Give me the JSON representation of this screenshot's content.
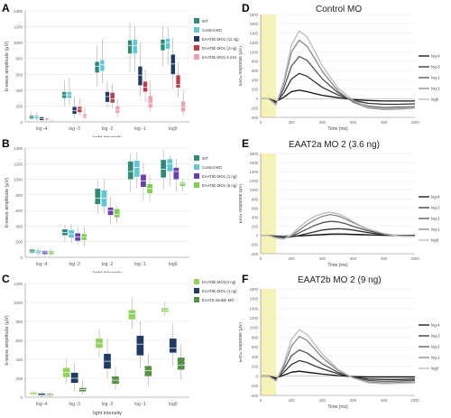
{
  "panel_labels": [
    "A",
    "B",
    "C",
    "D",
    "E",
    "F"
  ],
  "colors": {
    "wt": "#2e8b7a",
    "control": "#5fc8d8",
    "navy": "#1f3a63",
    "red": "#c03b45",
    "pink": "#f0a0a8",
    "purple": "#6a3fb0",
    "green": "#7fcf50",
    "darkgreen": "#2f6b2f",
    "hatch": "#5f9d4a",
    "lightgreen": "#8fd35a",
    "yellowband": "#f7f3b5",
    "trace": [
      "#111111",
      "#333333",
      "#555555",
      "#888888",
      "#bbbbbb"
    ]
  },
  "chart_data": [
    {
      "id": "A",
      "type": "box",
      "ylabel": "b-wave amplitude (µV)",
      "xlabel": "light intensity",
      "ylim": [
        0,
        1400
      ],
      "yticks": [
        0,
        200,
        400,
        600,
        800,
        1000,
        1200,
        1400
      ],
      "categories": [
        "log -4",
        "log -3",
        "log -2",
        "log -1",
        "log0"
      ],
      "series": [
        {
          "name": "WT",
          "color": "wt",
          "boxes": [
            [
              20,
              40,
              60,
              80,
              130
            ],
            [
              200,
              300,
              340,
              380,
              520
            ],
            [
              450,
              620,
              700,
              760,
              960
            ],
            [
              620,
              860,
              960,
              1030,
              1250
            ],
            [
              700,
              900,
              980,
              1040,
              1210
            ]
          ]
        },
        {
          "name": "Control MO",
          "color": "control",
          "boxes": [
            [
              20,
              40,
              60,
              80,
              120
            ],
            [
              220,
              300,
              340,
              380,
              560
            ],
            [
              480,
              640,
              720,
              780,
              1050
            ],
            [
              640,
              860,
              960,
              1040,
              1210
            ],
            [
              720,
              920,
              1000,
              1050,
              1200
            ]
          ]
        },
        {
          "name": "EAAT5b MO1 (11 ng)",
          "color": "navy",
          "boxes": [
            [
              10,
              20,
              40,
              60,
              80
            ],
            [
              50,
              100,
              140,
              190,
              320
            ],
            [
              180,
              250,
              320,
              380,
              520
            ],
            [
              320,
              460,
              590,
              700,
              1000
            ],
            [
              420,
              600,
              730,
              850,
              1060
            ]
          ]
        },
        {
          "name": "EAAT5b MO1 (4 ng)",
          "color": "red",
          "boxes": [
            [
              10,
              20,
              30,
              40,
              60
            ],
            [
              80,
              120,
              160,
              190,
              300
            ],
            [
              170,
              240,
              290,
              370,
              480
            ],
            [
              250,
              380,
              440,
              510,
              660
            ],
            [
              300,
              430,
              470,
              590,
              740
            ]
          ]
        },
        {
          "name": "EAAT5b MO1 5 mm",
          "color": "pink",
          "boxes": [
            [
              5,
              10,
              15,
              25,
              40
            ],
            [
              30,
              50,
              70,
              100,
              180
            ],
            [
              60,
              110,
              150,
              200,
              290
            ],
            [
              120,
              180,
              230,
              330,
              520
            ],
            [
              80,
              130,
              190,
              260,
              400
            ]
          ]
        }
      ],
      "legend": {
        "position": "right"
      }
    },
    {
      "id": "B",
      "type": "box",
      "ylabel": "b-wave amplitude (µV)",
      "xlabel": "light intensity",
      "ylim": [
        0,
        1400
      ],
      "yticks": [
        0,
        200,
        400,
        600,
        800,
        1000,
        1200,
        1400
      ],
      "categories": [
        "log -4",
        "log -3",
        "log -2",
        "log -1",
        "log0"
      ],
      "series": [
        {
          "name": "WT",
          "color": "wt",
          "boxes": [
            [
              40,
              60,
              80,
              100,
              130
            ],
            [
              200,
              280,
              320,
              360,
              420
            ],
            [
              560,
              680,
              760,
              880,
              990
            ],
            [
              840,
              1000,
              1100,
              1230,
              1330
            ],
            [
              870,
              1020,
              1130,
              1250,
              1380
            ]
          ]
        },
        {
          "name": "Control MO",
          "color": "control",
          "boxes": [
            [
              30,
              50,
              70,
              90,
              120
            ],
            [
              180,
              250,
              300,
              350,
              430
            ],
            [
              560,
              650,
              760,
              860,
              1000
            ],
            [
              880,
              1030,
              1150,
              1240,
              1350
            ],
            [
              920,
              1100,
              1200,
              1260,
              1310
            ]
          ]
        },
        {
          "name": "EAAT5b MO1 (1 ng)",
          "color": "purple",
          "boxes": [
            [
              20,
              40,
              60,
              80,
              100
            ],
            [
              160,
              210,
              260,
              310,
              390
            ],
            [
              420,
              540,
              600,
              640,
              780
            ],
            [
              720,
              900,
              980,
              1060,
              1200
            ],
            [
              840,
              1000,
              1100,
              1150,
              1260
            ]
          ]
        },
        {
          "name": "EAAT5b MO1 (6 ng)",
          "color": "green",
          "boxes": [
            [
              20,
              40,
              60,
              80,
              110
            ],
            [
              140,
              220,
              260,
              300,
              380
            ],
            [
              440,
              510,
              550,
              620,
              660
            ],
            [
              720,
              820,
              880,
              940,
              1050
            ],
            [
              850,
              910,
              940,
              960,
              1000
            ]
          ]
        }
      ],
      "legend": {
        "position": "right"
      }
    },
    {
      "id": "C",
      "type": "box",
      "ylabel": "b-wave amplitude (µV)",
      "xlabel": "light intensity",
      "ylim": [
        0,
        1200
      ],
      "yticks": [
        0,
        200,
        400,
        600,
        800,
        1000,
        1200
      ],
      "categories": [
        "log -4",
        "log -3",
        "log -2",
        "log -1",
        "log0"
      ],
      "series": [
        {
          "name": "EAAT5b MO2(4 ng)",
          "color": "lightgreen",
          "boxes": [
            [
              10,
              25,
              35,
              50,
              70
            ],
            [
              140,
              210,
              260,
              310,
              400
            ],
            [
              420,
              520,
              570,
              620,
              720
            ],
            [
              720,
              820,
              880,
              920,
              1050
            ],
            [
              860,
              900,
              920,
              940,
              1010
            ]
          ]
        },
        {
          "name": "EAAT5b MO1 (1 ng)",
          "color": "navy",
          "boxes": [
            [
              5,
              15,
              25,
              40,
              60
            ],
            [
              60,
              150,
              200,
              260,
              360
            ],
            [
              200,
              300,
              380,
              460,
              620
            ],
            [
              300,
              440,
              560,
              650,
              800
            ],
            [
              330,
              470,
              520,
              620,
              780
            ]
          ]
        },
        {
          "name": "EAAT5 double MO",
          "color": "hatch",
          "boxes": [
            [
              5,
              15,
              25,
              35,
              50
            ],
            [
              30,
              60,
              80,
              100,
              180
            ],
            [
              80,
              140,
              180,
              220,
              320
            ],
            [
              120,
              220,
              280,
              330,
              460
            ],
            [
              180,
              290,
              340,
              420,
              560
            ]
          ]
        }
      ],
      "legend": {
        "position": "top-right"
      }
    },
    {
      "id": "D",
      "type": "line",
      "title": "Control MO",
      "ylabel": "ERG response (µV)",
      "xlabel": "Time (ms)",
      "xlim": [
        0,
        1000
      ],
      "ylim": [
        -400,
        1800
      ],
      "yticks": [
        -400,
        -200,
        0,
        200,
        400,
        600,
        800,
        1000,
        1200,
        1400,
        1600,
        1800
      ],
      "xticks": [
        0,
        200,
        400,
        600,
        800,
        1000
      ],
      "stimulus": [
        0,
        100
      ],
      "x": [
        0,
        50,
        100,
        150,
        200,
        250,
        300,
        350,
        400,
        500,
        600,
        700,
        800,
        900,
        1000
      ],
      "series": [
        {
          "name": "log-4",
          "color": 0,
          "values": [
            0,
            0,
            -60,
            30,
            150,
            180,
            150,
            110,
            70,
            20,
            -20,
            -40,
            -50,
            -50,
            -50
          ]
        },
        {
          "name": "log-3",
          "color": 1,
          "values": [
            0,
            0,
            -80,
            120,
            420,
            540,
            480,
            360,
            240,
            80,
            -40,
            -100,
            -120,
            -120,
            -110
          ]
        },
        {
          "name": "log-2",
          "color": 2,
          "values": [
            0,
            0,
            -100,
            220,
            700,
            900,
            820,
            620,
            420,
            130,
            -60,
            -160,
            -190,
            -180,
            -170
          ]
        },
        {
          "name": "log-1",
          "color": 3,
          "values": [
            0,
            0,
            -120,
            320,
            1000,
            1250,
            1120,
            860,
            580,
            170,
            -80,
            -200,
            -230,
            -220,
            -200
          ]
        },
        {
          "name": "log0",
          "color": 4,
          "values": [
            0,
            0,
            -140,
            380,
            1150,
            1450,
            1320,
            1020,
            700,
            230,
            -40,
            -180,
            -210,
            -200,
            -190
          ]
        }
      ],
      "legend": {
        "position": "right"
      }
    },
    {
      "id": "E",
      "type": "line",
      "title": "EAAT2a MO 2 (3.6 ng)",
      "ylabel": "ERG response (µV)",
      "xlabel": "Time (ms)",
      "xlim": [
        0,
        1000
      ],
      "ylim": [
        -400,
        1800
      ],
      "yticks": [
        -400,
        -200,
        0,
        200,
        400,
        600,
        800,
        1000,
        1200,
        1400,
        1600,
        1800
      ],
      "xticks": [
        0,
        200,
        400,
        600,
        800,
        1000
      ],
      "stimulus": [
        0,
        100
      ],
      "x": [
        0,
        50,
        100,
        150,
        200,
        250,
        300,
        350,
        400,
        450,
        500,
        550,
        600,
        650,
        700,
        800,
        900,
        1000
      ],
      "series": [
        {
          "name": "log-4",
          "color": 0,
          "values": [
            0,
            0,
            -20,
            -30,
            -20,
            -10,
            0,
            10,
            20,
            30,
            35,
            30,
            25,
            20,
            15,
            5,
            0,
            0
          ]
        },
        {
          "name": "log-3",
          "color": 1,
          "values": [
            0,
            0,
            -30,
            -50,
            -30,
            0,
            40,
            80,
            120,
            140,
            150,
            140,
            120,
            90,
            60,
            20,
            0,
            -10
          ]
        },
        {
          "name": "log-2",
          "color": 2,
          "values": [
            0,
            0,
            -40,
            -60,
            -20,
            60,
            140,
            220,
            280,
            310,
            300,
            260,
            200,
            150,
            100,
            30,
            -10,
            -20
          ]
        },
        {
          "name": "log-1",
          "color": 3,
          "values": [
            0,
            0,
            -50,
            -70,
            0,
            120,
            240,
            340,
            420,
            460,
            430,
            360,
            280,
            200,
            130,
            40,
            -10,
            -20
          ]
        },
        {
          "name": "log0",
          "color": 4,
          "values": [
            0,
            0,
            -60,
            -80,
            20,
            180,
            320,
            420,
            480,
            510,
            480,
            400,
            300,
            210,
            140,
            40,
            -10,
            -20
          ]
        }
      ],
      "legend": {
        "position": "right"
      }
    },
    {
      "id": "F",
      "type": "line",
      "title": "EAAT2b MO 2 (9 ng)",
      "ylabel": "ERG response (µV)",
      "xlabel": "Time (ms)",
      "xlim": [
        0,
        1000
      ],
      "ylim": [
        -400,
        1800
      ],
      "yticks": [
        -400,
        -200,
        0,
        200,
        400,
        600,
        800,
        1000,
        1200,
        1400,
        1600,
        1800
      ],
      "xticks": [
        0,
        200,
        400,
        600,
        800,
        1000
      ],
      "stimulus": [
        0,
        100
      ],
      "x": [
        0,
        50,
        100,
        150,
        200,
        250,
        300,
        350,
        400,
        500,
        600,
        700,
        800,
        900,
        1000
      ],
      "series": [
        {
          "name": "log-4",
          "color": 0,
          "values": [
            0,
            0,
            -40,
            20,
            80,
            100,
            80,
            60,
            40,
            10,
            -10,
            -20,
            -20,
            -20,
            -20
          ]
        },
        {
          "name": "log-3",
          "color": 1,
          "values": [
            0,
            0,
            -60,
            80,
            240,
            320,
            280,
            210,
            150,
            50,
            -20,
            -60,
            -70,
            -70,
            -60
          ]
        },
        {
          "name": "log-2",
          "color": 2,
          "values": [
            0,
            0,
            -80,
            140,
            420,
            540,
            480,
            360,
            250,
            80,
            -30,
            -90,
            -110,
            -100,
            -90
          ]
        },
        {
          "name": "log-1",
          "color": 3,
          "values": [
            0,
            0,
            -100,
            200,
            620,
            820,
            740,
            560,
            380,
            120,
            -40,
            -120,
            -140,
            -130,
            -120
          ]
        },
        {
          "name": "log0",
          "color": 4,
          "values": [
            0,
            0,
            -110,
            260,
            760,
            960,
            860,
            660,
            450,
            140,
            -40,
            -140,
            -160,
            -150,
            -140
          ]
        }
      ],
      "legend": {
        "position": "right"
      }
    }
  ]
}
